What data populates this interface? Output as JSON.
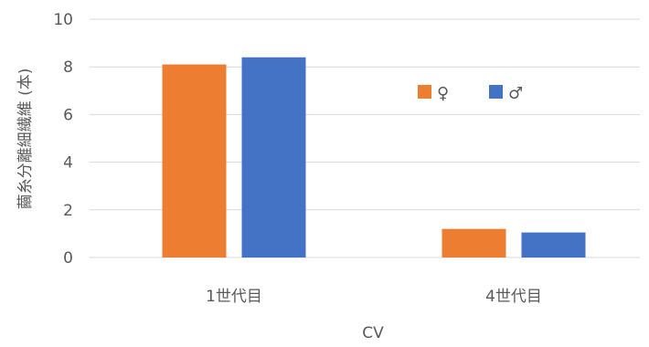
{
  "chart_data": {
    "type": "bar",
    "title": "",
    "xlabel": "CV",
    "ylabel": "繭糸分離細繊維 (本)",
    "categories": [
      "1世代目",
      "4世代目"
    ],
    "series": [
      {
        "name": "♀",
        "values": [
          8.1,
          1.2
        ],
        "color": "#ED7D31"
      },
      {
        "name": "♂",
        "values": [
          8.4,
          1.05
        ],
        "color": "#4472C4"
      }
    ],
    "ylim": [
      0,
      10
    ],
    "yticks": [
      0,
      2,
      4,
      6,
      8,
      10
    ],
    "grid": true,
    "legend_position": "right-inside"
  }
}
